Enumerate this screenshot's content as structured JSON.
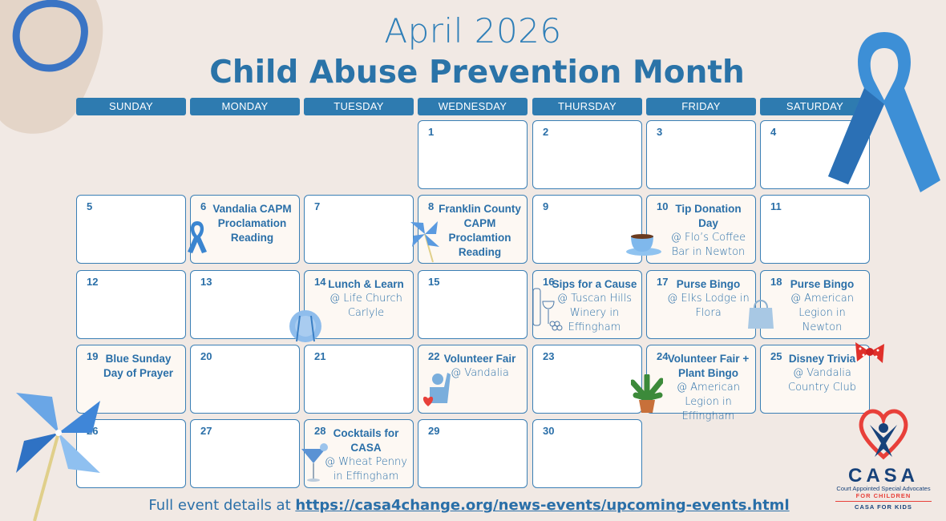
{
  "header": {
    "title": "April 2026",
    "subtitle": "Child Abuse Prevention Month"
  },
  "weekdays": [
    "SUNDAY",
    "MONDAY",
    "TUESDAY",
    "WEDNESDAY",
    "THURSDAY",
    "FRIDAY",
    "SATURDAY"
  ],
  "calendar": [
    {
      "day": "1",
      "col": 3,
      "row": 0
    },
    {
      "day": "2",
      "col": 4,
      "row": 0
    },
    {
      "day": "3",
      "col": 5,
      "row": 0
    },
    {
      "day": "4",
      "col": 6,
      "row": 0
    },
    {
      "day": "5",
      "col": 0,
      "row": 1
    },
    {
      "day": "6",
      "col": 1,
      "row": 1,
      "title": "Vandalia CAPM Proclamation Reading",
      "icon": "ribbon-icon"
    },
    {
      "day": "7",
      "col": 2,
      "row": 1
    },
    {
      "day": "8",
      "col": 3,
      "row": 1,
      "title": "Franklin County CAPM Proclamtion Reading",
      "icon": "pinwheel-icon"
    },
    {
      "day": "9",
      "col": 4,
      "row": 1
    },
    {
      "day": "10",
      "col": 5,
      "row": 1,
      "title": "Tip Donation Day",
      "location": "@ Flo’s Coffee Bar in Newton",
      "icon": "coffee-cup-icon"
    },
    {
      "day": "11",
      "col": 6,
      "row": 1
    },
    {
      "day": "12",
      "col": 0,
      "row": 2
    },
    {
      "day": "13",
      "col": 1,
      "row": 2
    },
    {
      "day": "14",
      "col": 2,
      "row": 2,
      "title": "Lunch & Learn",
      "location": "@ Life Church Carlyle",
      "icon": "plate-utensils-icon"
    },
    {
      "day": "15",
      "col": 3,
      "row": 2
    },
    {
      "day": "16",
      "col": 4,
      "row": 2,
      "title": "Sips for a Cause",
      "location": "@ Tuscan Hills Winery in Effingham",
      "icon": "wine-grapes-icon"
    },
    {
      "day": "17",
      "col": 5,
      "row": 2,
      "title": "Purse Bingo",
      "location": "@ Elks Lodge in Flora",
      "icon": "purse-icon"
    },
    {
      "day": "18",
      "col": 6,
      "row": 2,
      "title": "Purse Bingo",
      "location": "@ American Legion in Newton"
    },
    {
      "day": "19",
      "col": 0,
      "row": 3,
      "title": "Blue Sunday Day of Prayer"
    },
    {
      "day": "20",
      "col": 1,
      "row": 3
    },
    {
      "day": "21",
      "col": 2,
      "row": 3
    },
    {
      "day": "22",
      "col": 3,
      "row": 3,
      "title": "Volunteer Fair",
      "location": "@ Vandalia",
      "icon": "volunteer-heart-icon"
    },
    {
      "day": "23",
      "col": 4,
      "row": 3
    },
    {
      "day": "24",
      "col": 5,
      "row": 3,
      "title": "Volunteer Fair + Plant Bingo",
      "location": "@ American Legion in Effingham",
      "icon": "plant-icon"
    },
    {
      "day": "25",
      "col": 6,
      "row": 3,
      "title": "Disney Trivia",
      "location": "@ Vandalia Country Club",
      "icon": "bow-icon"
    },
    {
      "day": "26",
      "col": 0,
      "row": 4
    },
    {
      "day": "27",
      "col": 1,
      "row": 4
    },
    {
      "day": "28",
      "col": 2,
      "row": 4,
      "title": "Cocktails for CASA",
      "location": "@ Wheat Penny in Effingham",
      "icon": "cocktail-icon"
    },
    {
      "day": "29",
      "col": 3,
      "row": 4
    },
    {
      "day": "30",
      "col": 4,
      "row": 4
    }
  ],
  "footer": {
    "prefix": "Full event details at ",
    "link": "https://casa4change.org/news-events/upcoming-events.html"
  },
  "logo": {
    "name": "CASA",
    "tagline": "Court Appointed Special Advocates",
    "sub": "FOR CHILDREN",
    "org": "CASA FOR KIDS"
  },
  "colors": {
    "background": "#f1e9e4",
    "accent": "#2e7bb0",
    "text": "#2a6fa8",
    "logo_red": "#e8403a"
  }
}
